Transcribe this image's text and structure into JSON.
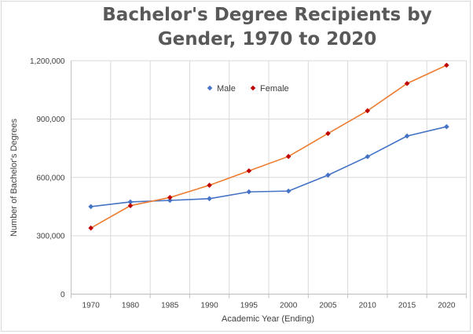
{
  "chart_data": {
    "type": "line",
    "title": "Bachelor's Degree Recipients by Gender, 1970 to 2020",
    "xlabel": "Academic Year (Ending)",
    "ylabel": "Number of Bachelor's Degrees",
    "categories": [
      "1970",
      "1980",
      "1985",
      "1990",
      "1995",
      "2000",
      "2005",
      "2010",
      "2015",
      "2020"
    ],
    "ylim": [
      0,
      1200000
    ],
    "yticks": [
      0,
      300000,
      600000,
      900000,
      1200000
    ],
    "ytick_labels": [
      "0",
      "300,000",
      "600,000",
      "900,000",
      "1,200,000"
    ],
    "grid": true,
    "legend_position": "top-center (inside plot)",
    "series": [
      {
        "name": "Male",
        "color": "#4472c4",
        "marker_color": "#4472c4",
        "values": [
          450000,
          474000,
          482000,
          491000,
          526000,
          530000,
          612000,
          707000,
          813000,
          861000
        ]
      },
      {
        "name": "Female",
        "color": "#ed7d31",
        "marker_color": "#c00000",
        "values": [
          340000,
          455000,
          497000,
          560000,
          634000,
          708000,
          826000,
          943000,
          1083000,
          1177000
        ]
      }
    ]
  }
}
